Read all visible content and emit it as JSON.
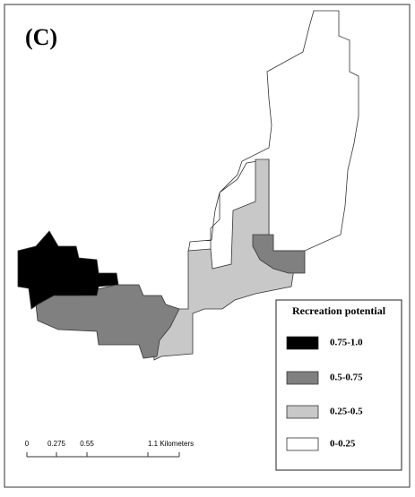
{
  "panel_label": "(C)",
  "legend": {
    "title": "Recreation potential",
    "items": [
      {
        "label": "0.75-1.0",
        "color": "#000000"
      },
      {
        "label": "0.5-0.75",
        "color": "#808080"
      },
      {
        "label": "0.25-0.5",
        "color": "#c8c8c8"
      },
      {
        "label": "0-0.25",
        "color": "#ffffff"
      }
    ]
  },
  "scale_bar": {
    "labels": [
      "0",
      "0.275",
      "0.55",
      "1.1 Kilometers"
    ]
  }
}
